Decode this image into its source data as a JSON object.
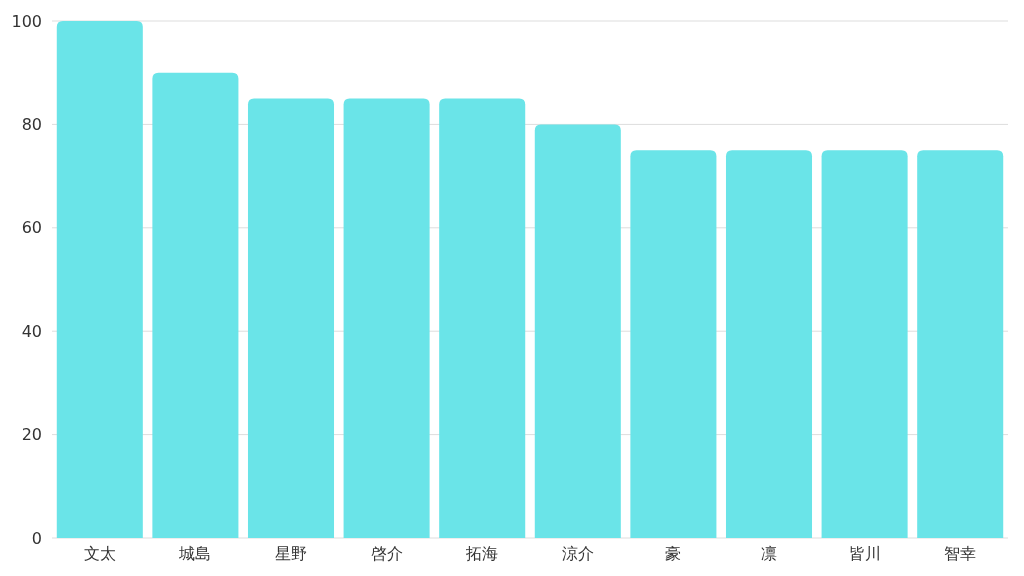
{
  "chart_data": {
    "type": "bar",
    "categories": [
      "文太",
      "城島",
      "星野",
      "啓介",
      "拓海",
      "涼介",
      "豪",
      "凛",
      "皆川",
      "智幸"
    ],
    "values": [
      100,
      90,
      85,
      85,
      85,
      80,
      75,
      75,
      75,
      75
    ],
    "color": "#6ae4e8",
    "ylim": [
      0,
      100
    ],
    "yticks": [
      0,
      20,
      40,
      60,
      80,
      100
    ],
    "grid": "y"
  }
}
